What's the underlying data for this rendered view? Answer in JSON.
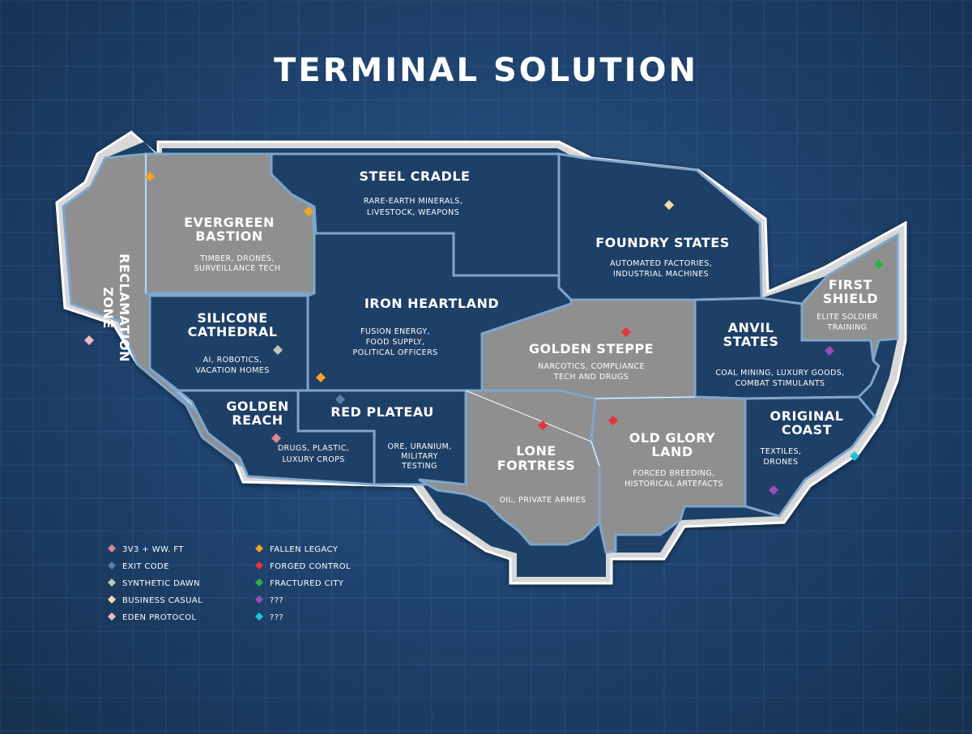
{
  "title": "TERMINAL SOLUTION",
  "colors": {
    "grey_region": "#8f8f8f",
    "blue_region": "#1e3f66",
    "border": "#7ea6cc",
    "outline_white": "#ffffff"
  },
  "regions": {
    "reclamation": {
      "name": [
        "RECLAMATION",
        "ZONE"
      ],
      "sub": []
    },
    "evergreen": {
      "name": [
        "EVERGREEN",
        "BASTION"
      ],
      "sub": [
        "TIMBER, DRONES,",
        "SURVEILLANCE TECH"
      ]
    },
    "steel": {
      "name": [
        "STEEL CRADLE"
      ],
      "sub": [
        "RARE-EARTH MINERALS,",
        "LIVESTOCK, WEAPONS"
      ]
    },
    "foundry": {
      "name": [
        "FOUNDRY STATES"
      ],
      "sub": [
        "AUTOMATED FACTORIES,",
        "INDUSTRIAL MACHINES"
      ]
    },
    "first_shield": {
      "name": [
        "FIRST",
        "SHIELD"
      ],
      "sub": [
        "ELITE SOLDIER",
        "TRAINING"
      ]
    },
    "silicone": {
      "name": [
        "SILICONE",
        "CATHEDRAL"
      ],
      "sub": [
        "AI, ROBOTICS,",
        "VACATION HOMES"
      ]
    },
    "iron": {
      "name": [
        "IRON HEARTLAND"
      ],
      "sub": [
        "FUSION ENERGY,",
        "FOOD SUPPLY,",
        "POLITICAL OFFICERS"
      ]
    },
    "golden_steppe": {
      "name": [
        "GOLDEN STEPPE"
      ],
      "sub": [
        "NARCOTICS, COMPLIANCE",
        "TECH AND DRUGS"
      ]
    },
    "anvil": {
      "name": [
        "ANVIL",
        "STATES"
      ],
      "sub": [
        "COAL MINING, LUXURY GOODS,",
        "COMBAT STIMULANTS"
      ]
    },
    "golden_reach": {
      "name": [
        "GOLDEN",
        "REACH"
      ],
      "sub": [
        "DRUGS, PLASTIC,",
        "LUXURY CROPS"
      ]
    },
    "red_plateau": {
      "name": [
        "RED PLATEAU"
      ],
      "sub": [
        "ORE, URANIUM,",
        "MILITARY",
        "TESTING"
      ]
    },
    "lone_fortress": {
      "name": [
        "LONE",
        "FORTRESS"
      ],
      "sub": [
        "OIL, PRIVATE ARMIES"
      ]
    },
    "old_glory": {
      "name": [
        "OLD GLORY",
        "LAND"
      ],
      "sub": [
        "FORCED BREEDING,",
        "HISTORICAL ARTEFACTS"
      ]
    },
    "original_coast": {
      "name": [
        "ORIGINAL",
        "COAST"
      ],
      "sub": [
        "TEXTILES,",
        "DRONES"
      ]
    }
  },
  "legend": [
    {
      "label": "3V3 + WW. FT",
      "color": "#d98a90"
    },
    {
      "label": "EXIT CODE",
      "color": "#5b7fa3"
    },
    {
      "label": "SYNTHETIC DAWN",
      "color": "#b8cbb8"
    },
    {
      "label": "BUSINESS CASUAL",
      "color": "#f5dfa6"
    },
    {
      "label": "EDEN PROTOCOL",
      "color": "#f2b8c8"
    },
    {
      "label": "FALLEN LEGACY",
      "color": "#f5a623"
    },
    {
      "label": "FORGED CONTROL",
      "color": "#e8323c"
    },
    {
      "label": "FRACTURED CITY",
      "color": "#2eb04a"
    },
    {
      "label": "???",
      "color": "#9b4fb5"
    },
    {
      "label": "???",
      "color": "#1ec3d8"
    }
  ],
  "markers": [
    {
      "icon": "diamond-marker",
      "faction": "FALLEN LEGACY",
      "region": "EVERGREEN BASTION",
      "color": "#f5a623"
    },
    {
      "icon": "diamond-marker",
      "faction": "FALLEN LEGACY",
      "region": "STEEL CRADLE",
      "color": "#f5a623"
    },
    {
      "icon": "diamond-marker",
      "faction": "FALLEN LEGACY",
      "region": "IRON HEARTLAND",
      "color": "#f5a623"
    },
    {
      "icon": "diamond-marker",
      "faction": "BUSINESS CASUAL",
      "region": "FOUNDRY STATES",
      "color": "#f5dfa6"
    },
    {
      "icon": "diamond-marker",
      "faction": "FRACTURED CITY",
      "region": "FIRST SHIELD",
      "color": "#2eb04a"
    },
    {
      "icon": "diamond-marker",
      "faction": "EDEN PROTOCOL",
      "region": "RECLAMATION ZONE",
      "color": "#f2b8c8"
    },
    {
      "icon": "diamond-marker",
      "faction": "SYNTHETIC DAWN",
      "region": "SILICONE CATHEDRAL",
      "color": "#b8cbb8"
    },
    {
      "icon": "diamond-marker",
      "faction": "FORGED CONTROL",
      "region": "GOLDEN STEPPE",
      "color": "#e8323c"
    },
    {
      "icon": "diamond-marker",
      "faction": "???",
      "region": "ANVIL STATES",
      "color": "#9b4fb5"
    },
    {
      "icon": "diamond-marker",
      "faction": "EXIT CODE",
      "region": "RED PLATEAU",
      "color": "#5b7fa3"
    },
    {
      "icon": "diamond-marker",
      "faction": "3V3 + WW. FT",
      "region": "GOLDEN REACH",
      "color": "#d98a90"
    },
    {
      "icon": "diamond-marker",
      "faction": "FORGED CONTROL",
      "region": "LONE FORTRESS",
      "color": "#e8323c"
    },
    {
      "icon": "diamond-marker",
      "faction": "FORGED CONTROL",
      "region": "OLD GLORY LAND",
      "color": "#e8323c"
    },
    {
      "icon": "diamond-marker",
      "faction": "???",
      "region": "ORIGINAL COAST",
      "color": "#9b4fb5"
    },
    {
      "icon": "diamond-marker",
      "faction": "???",
      "region": "ORIGINAL COAST",
      "color": "#1ec3d8"
    }
  ]
}
